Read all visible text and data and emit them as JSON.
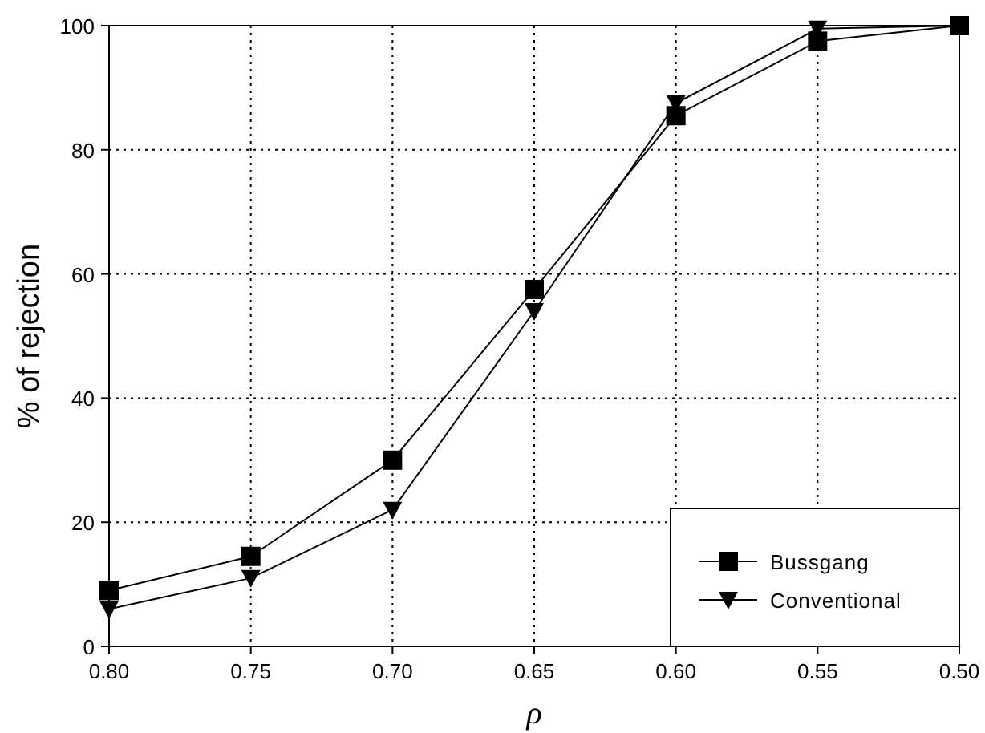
{
  "chart_data": {
    "type": "line",
    "xlabel": "ρ",
    "ylabel": "% of rejection",
    "x": [
      0.8,
      0.75,
      0.7,
      0.65,
      0.6,
      0.55,
      0.5
    ],
    "xlim": [
      0.8,
      0.5
    ],
    "xticks": [
      {
        "value": 0.8,
        "label": "0.80"
      },
      {
        "value": 0.75,
        "label": "0.75"
      },
      {
        "value": 0.7,
        "label": "0.70"
      },
      {
        "value": 0.65,
        "label": "0.65"
      },
      {
        "value": 0.6,
        "label": "0.60"
      },
      {
        "value": 0.55,
        "label": "0.55"
      },
      {
        "value": 0.5,
        "label": "0.50"
      }
    ],
    "ylim": [
      0,
      100
    ],
    "yticks": [
      0,
      20,
      40,
      60,
      80,
      100
    ],
    "grid": true,
    "legend": "bottom right",
    "line_style": "solid",
    "series": [
      {
        "name": "Bussgang",
        "color": "#000000",
        "marker": "square",
        "values": [
          9,
          14.5,
          30,
          57.5,
          85.5,
          97.5,
          100
        ]
      },
      {
        "name": "Conventional",
        "color": "#000000",
        "marker": "triangle",
        "values": [
          6,
          11,
          22,
          54,
          87.5,
          99.5,
          100
        ]
      }
    ]
  }
}
